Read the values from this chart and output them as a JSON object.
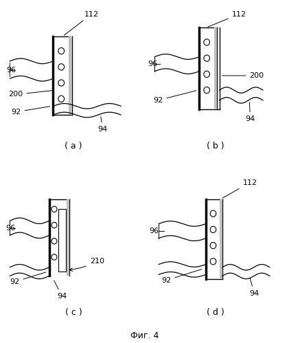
{
  "title": "Фиг. 4",
  "background_color": "#ffffff",
  "panels": [
    "( a )",
    "( b )",
    "( c )",
    "( d )"
  ],
  "annotation_fontsize": 8,
  "labels_fontsize": 9,
  "caption_fontsize": 9
}
